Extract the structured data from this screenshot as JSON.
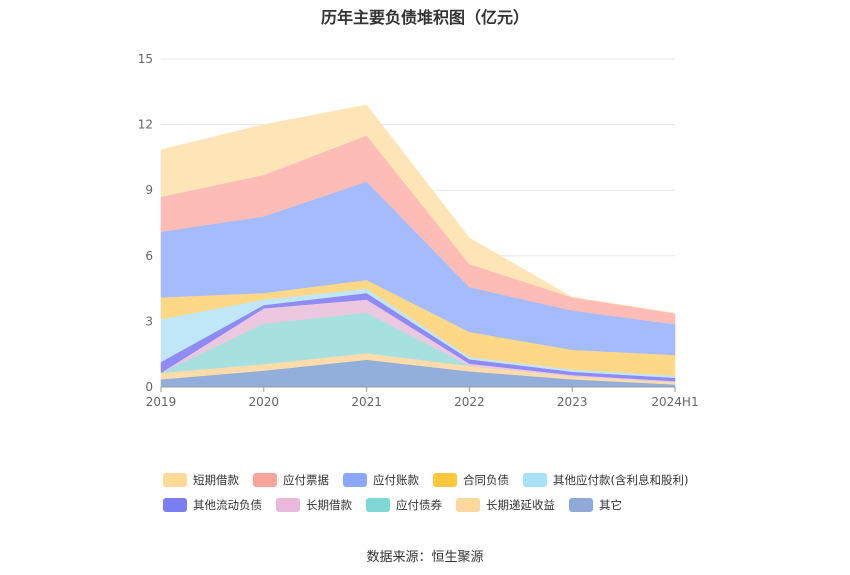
{
  "chart_data": {
    "type": "area",
    "stacked": true,
    "title": "历年主要负债堆积图（亿元）",
    "categories": [
      "2019",
      "2020",
      "2021",
      "2022",
      "2023",
      "2024H1"
    ],
    "ylim": [
      0,
      15
    ],
    "yticks": [
      "0",
      "3",
      "6",
      "9",
      "12",
      "15"
    ],
    "grid": true,
    "legend_position": "bottom",
    "series": [
      {
        "name": "其它",
        "color": "#92aedb",
        "values": [
          0.35,
          0.75,
          1.25,
          0.72,
          0.35,
          0.12
        ]
      },
      {
        "name": "长期递延收益",
        "color": "#fcdcab",
        "values": [
          0.3,
          0.3,
          0.3,
          0.25,
          0.15,
          0.1
        ]
      },
      {
        "name": "应付债券",
        "color": "#a6e1df",
        "values": [
          0,
          1.85,
          1.85,
          0,
          0,
          0
        ]
      },
      {
        "name": "长期借款",
        "color": "#ecc8e0",
        "values": [
          0,
          0.7,
          0.6,
          0.1,
          0.05,
          0.05
        ]
      },
      {
        "name": "其他流动负债",
        "color": "#8f8af4",
        "values": [
          0.5,
          0.15,
          0.3,
          0.2,
          0.15,
          0.15
        ]
      },
      {
        "name": "其他应付款(含利息和股利)",
        "color": "#bfe7f8",
        "values": [
          1.95,
          0.25,
          0.2,
          0.1,
          0.1,
          0.1
        ]
      },
      {
        "name": "合同负债",
        "color": "#fed886",
        "values": [
          1.0,
          0.3,
          0.4,
          1.15,
          0.9,
          0.95
        ]
      },
      {
        "name": "应付账款",
        "color": "#a4bcfd",
        "values": [
          3.0,
          3.5,
          4.5,
          2.05,
          1.8,
          1.4
        ]
      },
      {
        "name": "应付票据",
        "color": "#fdbdb6",
        "values": [
          1.6,
          1.9,
          2.1,
          1.05,
          0.6,
          0.5
        ]
      },
      {
        "name": "短期借款",
        "color": "#fde5b8",
        "values": [
          2.15,
          2.3,
          1.4,
          1.2,
          0,
          0
        ]
      }
    ],
    "legend": [
      {
        "name": "短期借款",
        "color": "#fed999"
      },
      {
        "name": "应付票据",
        "color": "#fba59a"
      },
      {
        "name": "应付账款",
        "color": "#8ba8fd"
      },
      {
        "name": "合同负债",
        "color": "#fec73d"
      },
      {
        "name": "其他应付款(含利息和股利)",
        "color": "#a6e0fa"
      },
      {
        "name": "其他流动负债",
        "color": "#7b7ef3"
      },
      {
        "name": "长期借款",
        "color": "#e9b8db"
      },
      {
        "name": "应付债券",
        "color": "#80d6d4"
      },
      {
        "name": "长期递延收益",
        "color": "#fdd89c"
      },
      {
        "name": "其它",
        "color": "#8faad9"
      }
    ]
  },
  "footer": {
    "source": "数据来源：恒生聚源"
  }
}
